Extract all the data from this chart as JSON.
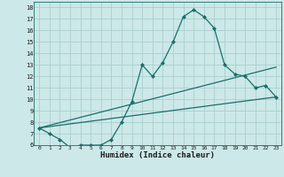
{
  "xlabel": "Humidex (Indice chaleur)",
  "background_color": "#cce8e8",
  "grid_color": "#aacece",
  "line_color": "#1a6e6a",
  "xlim": [
    -0.5,
    23.5
  ],
  "ylim": [
    6,
    18.5
  ],
  "xticks": [
    0,
    1,
    2,
    3,
    4,
    5,
    6,
    7,
    8,
    9,
    10,
    11,
    12,
    13,
    14,
    15,
    16,
    17,
    18,
    19,
    20,
    21,
    22,
    23
  ],
  "yticks": [
    6,
    7,
    8,
    9,
    10,
    11,
    12,
    13,
    14,
    15,
    16,
    17,
    18
  ],
  "series1_x": [
    0,
    1,
    2,
    3,
    4,
    5,
    6,
    7,
    8,
    9,
    10,
    11,
    12,
    13,
    14,
    15,
    16,
    17,
    18,
    19,
    20,
    21,
    22,
    23
  ],
  "series1_y": [
    7.5,
    7.0,
    6.5,
    5.8,
    6.0,
    6.0,
    6.0,
    6.5,
    8.0,
    9.8,
    13.0,
    12.0,
    13.2,
    15.0,
    17.2,
    17.8,
    17.2,
    16.2,
    13.0,
    12.2,
    12.0,
    11.0,
    11.2,
    10.2
  ],
  "series2_x": [
    0,
    23
  ],
  "series2_y": [
    7.5,
    12.8
  ],
  "series3_x": [
    0,
    23
  ],
  "series3_y": [
    7.5,
    10.2
  ]
}
